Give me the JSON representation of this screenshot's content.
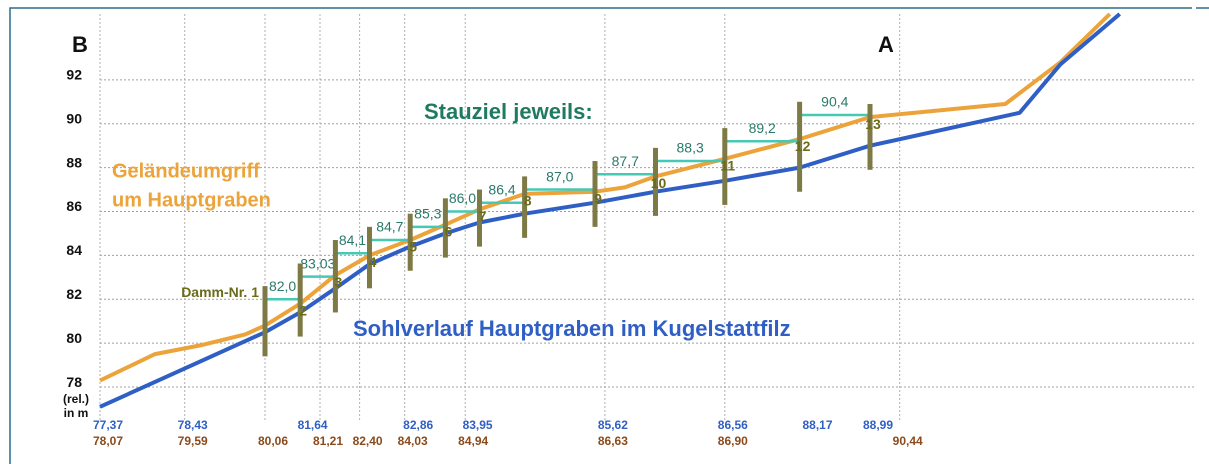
{
  "chart_data": {
    "type": "line",
    "corner_labels": [
      "B",
      "A"
    ],
    "corner_x": [
      0,
      70
    ],
    "y_axis_label": [
      "(rel.)",
      "in m"
    ],
    "ylim": [
      77,
      95
    ],
    "yticks": [
      78,
      80,
      82,
      84,
      86,
      88,
      90,
      92
    ],
    "xlim": [
      0,
      100
    ],
    "grid": true,
    "series": [
      {
        "label": [
          "Geländeumgriff",
          "um Hauptgraben"
        ],
        "color": "#eba33a",
        "x": [
          0,
          5,
          9.1,
          13.2,
          15,
          18.2,
          21.4,
          24.5,
          28.2,
          31.4,
          34.5,
          38.6,
          45,
          47.7,
          50.5,
          56.8,
          63.6,
          70,
          82.3,
          87.3,
          91.8
        ],
        "values": [
          78.3,
          79.5,
          79.9,
          80.4,
          80.8,
          81.8,
          83.1,
          84.0,
          84.7,
          85.4,
          86.1,
          86.8,
          86.9,
          87.1,
          87.6,
          88.4,
          89.3,
          90.3,
          90.9,
          92.8,
          95.0
        ]
      },
      {
        "label": [
          "Sohlverlauf Hauptgraben im Kugelstattfilz"
        ],
        "color": "#2f5fc4",
        "x": [
          0,
          15,
          18.2,
          21.4,
          24.5,
          28.2,
          31.4,
          34.5,
          38.6,
          45,
          50.5,
          56.8,
          63.6,
          70,
          83.6,
          87.3,
          92.7
        ],
        "values": [
          77.1,
          80.5,
          81.4,
          82.5,
          83.6,
          84.4,
          85.0,
          85.5,
          85.9,
          86.4,
          86.9,
          87.4,
          88.0,
          89.0,
          90.5,
          92.7,
          95.0
        ]
      }
    ],
    "stauziel_title": "Stauziel jeweils:",
    "dams": {
      "labels": [
        "Damm-Nr. 1",
        "2",
        "3",
        "4",
        "5",
        "6",
        "7",
        "8",
        "9",
        "10",
        "11",
        "12",
        "13"
      ],
      "x": [
        15,
        18.2,
        21.4,
        24.5,
        28.2,
        31.4,
        34.5,
        38.6,
        45,
        50.5,
        56.8,
        63.6,
        70
      ],
      "stauziel": [
        82.0,
        83.03,
        84.1,
        84.7,
        85.3,
        86.0,
        86.4,
        87.0,
        87.7,
        88.3,
        89.2,
        90.4
      ],
      "value_labels": [
        "82,0",
        "83,03",
        "84,1",
        "84,7",
        "85,3",
        "86,0",
        "86,4",
        "87,0",
        "87,7",
        "88,3",
        "89,2",
        "90,4"
      ]
    },
    "bottom_labels": [
      {
        "color": "#2f5fc4",
        "x": [
          0,
          7.7,
          18.6,
          28.2,
          33.6,
          45.9,
          56.8,
          64.5,
          70
        ],
        "values": [
          77.37,
          78.43,
          81.64,
          82.86,
          83.95,
          85.62,
          86.56,
          88.17,
          88.99
        ],
        "value_labels": [
          "77,37",
          "78,43",
          "81,64",
          "82,86",
          "83,95",
          "85,62",
          "86,56",
          "88,17",
          "88,99"
        ]
      },
      {
        "color": "#8a4a1c",
        "x": [
          0,
          7.7,
          15,
          20,
          23.6,
          27.7,
          33.2,
          45.9,
          56.8,
          72.7
        ],
        "values": [
          78.07,
          79.59,
          80.06,
          81.21,
          82.4,
          84.03,
          84.94,
          86.63,
          86.9,
          90.44
        ],
        "value_labels": [
          "78,07",
          "79,59",
          "80,06",
          "81,21",
          "82,40",
          "84,03",
          "84,94",
          "86,63",
          "86,90",
          "90,44"
        ]
      }
    ]
  }
}
